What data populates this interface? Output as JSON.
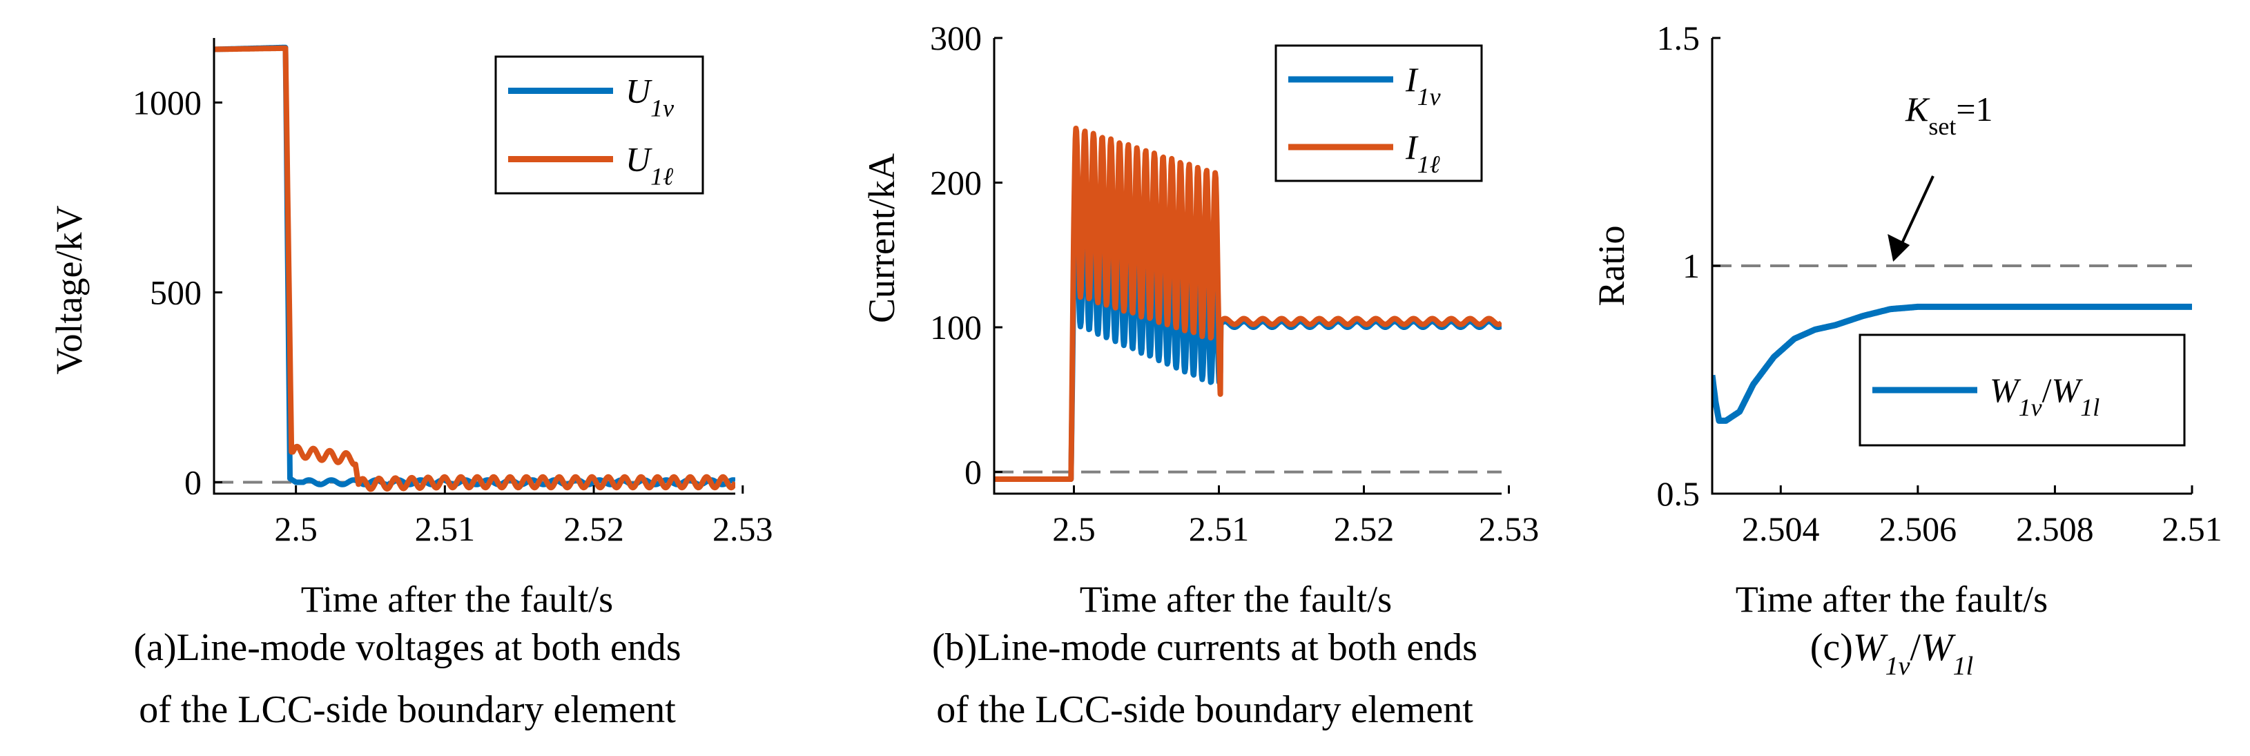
{
  "figure": {
    "panels": [
      {
        "caption_lines": [
          "(a)Line-mode voltages at both ends",
          "of the LCC-side boundary element"
        ]
      },
      {
        "caption_lines": [
          "(b)Line-mode currents at both ends",
          "of the LCC-side boundary element"
        ]
      },
      {
        "caption_lines": [
          "(c)W1v/W1l"
        ]
      }
    ]
  },
  "colors": {
    "blue": "#0072BD",
    "orange": "#D95319",
    "ref": "#808080"
  },
  "chart_data": [
    {
      "type": "line",
      "xlabel": "Time after the fault/s",
      "ylabel": "Voltage/kV",
      "xlim": [
        2.4945,
        2.5295
      ],
      "ylim": [
        -30,
        1170
      ],
      "xticks": [
        "2.5",
        "2.51",
        "2.52",
        "2.53"
      ],
      "yticks": [
        "0",
        "500",
        "1000"
      ],
      "legend": {
        "position": "top-right",
        "entries": [
          "U1v",
          "U1ℓ"
        ]
      },
      "reference_line": {
        "y": 0,
        "style": "dashed"
      },
      "series": [
        {
          "name": "U1v",
          "x": [
            2.4945,
            2.4992,
            2.4993,
            2.4996,
            2.5,
            2.51,
            2.52,
            2.5295
          ],
          "y": [
            1140,
            1145,
            1145,
            10,
            0,
            0,
            0,
            0
          ],
          "oscillation": {
            "start": 2.5005,
            "end": 2.5295,
            "amplitude": 6,
            "period": 0.0015
          }
        },
        {
          "name": "U1ℓ",
          "x": [
            2.4945,
            2.4992,
            2.4993,
            2.4997,
            2.5002,
            2.504,
            2.5042,
            2.51,
            2.52,
            2.5295
          ],
          "y": [
            1140,
            1143,
            1143,
            80,
            80,
            60,
            -5,
            0,
            0,
            0
          ],
          "oscillation": {
            "start": 2.4998,
            "end": 2.5295,
            "amplitude": 14,
            "period": 0.0011
          }
        }
      ]
    },
    {
      "type": "line",
      "xlabel": "Time after the fault/s",
      "ylabel": "Current/kA",
      "xlim": [
        2.4945,
        2.5295
      ],
      "ylim": [
        -15,
        300
      ],
      "xticks": [
        "2.5",
        "2.51",
        "2.52",
        "2.53"
      ],
      "yticks": [
        "0",
        "100",
        "200",
        "300"
      ],
      "legend": {
        "position": "top-right",
        "entries": [
          "I1v",
          "I1ℓ"
        ]
      },
      "reference_line": {
        "y": 0,
        "style": "dashed"
      },
      "series": [
        {
          "name": "I1v",
          "x": [
            2.4945,
            2.4998,
            2.5,
            2.5001,
            2.51,
            2.5101,
            2.52,
            2.5295
          ],
          "y": [
            -5,
            -5,
            140,
            140,
            97,
            102,
            102,
            102
          ],
          "oscillation": {
            "start": 2.5,
            "end": 2.5101,
            "amplitude": 38,
            "period": 0.0006,
            "tail_amplitude": 2,
            "tail_period": 0.0013
          }
        },
        {
          "name": "I1ℓ",
          "x": [
            2.4945,
            2.4998,
            2.5,
            2.5001,
            2.51,
            2.5101,
            2.52,
            2.5295
          ],
          "y": [
            -5,
            -5,
            175,
            180,
            148,
            104,
            104,
            104
          ],
          "oscillation": {
            "start": 2.5,
            "end": 2.5101,
            "amplitude": 58,
            "period": 0.0006,
            "tail_amplitude": 2,
            "tail_period": 0.0013
          }
        }
      ]
    },
    {
      "type": "line",
      "xlabel": "Time after the fault/s",
      "ylabel": "Ratio",
      "xlim": [
        2.503,
        2.51
      ],
      "ylim": [
        0.5,
        1.5
      ],
      "xticks": [
        "2.504",
        "2.506",
        "2.508",
        "2.51"
      ],
      "yticks": [
        "0.5",
        "1",
        "1.5"
      ],
      "legend": {
        "position": "right",
        "entries": [
          "W1v/W1l"
        ]
      },
      "reference_line": {
        "y": 1,
        "style": "dashed"
      },
      "annotation": {
        "text": "Kset=1",
        "arrow_to": [
          2.5056,
          1.0
        ]
      },
      "series": [
        {
          "name": "W1v/W1l",
          "x": [
            2.503,
            2.50305,
            2.5031,
            2.5032,
            2.5034,
            2.5036,
            2.5039,
            2.5042,
            2.5045,
            2.5048,
            2.5052,
            2.5056,
            2.506,
            2.507,
            2.508,
            2.509,
            2.51
          ],
          "y": [
            0.76,
            0.7,
            0.66,
            0.66,
            0.68,
            0.74,
            0.8,
            0.84,
            0.86,
            0.87,
            0.89,
            0.905,
            0.91,
            0.91,
            0.91,
            0.91,
            0.91
          ]
        }
      ]
    }
  ]
}
